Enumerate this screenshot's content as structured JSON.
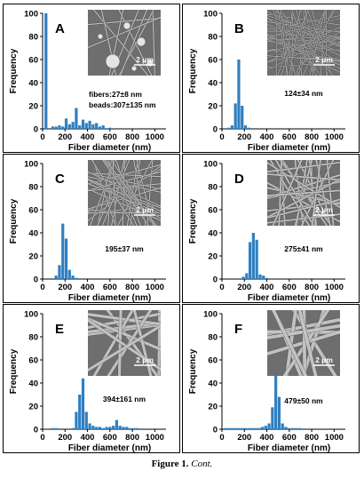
{
  "caption": {
    "label": "Figure 1.",
    "text": "Cont."
  },
  "inset_colors": {
    "bg": "#6e6e6e",
    "fiber_light": "#d6d6d6",
    "fiber_dark": "#3a3a3a",
    "text": "#ffffff"
  },
  "bar_color": "#2f7fc1",
  "chart_data": [
    {
      "type": "bar",
      "panel": "A",
      "xlabel": "Fiber diameter (nm)",
      "ylabel": "Frequency",
      "xlim": [
        0,
        1100
      ],
      "ylim": [
        0,
        100
      ],
      "xticks": [
        0,
        200,
        400,
        600,
        800,
        1000
      ],
      "yticks": [
        0,
        20,
        40,
        60,
        80,
        100
      ],
      "x": [
        30,
        90,
        120,
        150,
        180,
        210,
        240,
        270,
        300,
        330,
        360,
        390,
        420,
        450,
        480,
        510,
        540,
        600
      ],
      "values": [
        100,
        2,
        2,
        3,
        2,
        9,
        4,
        6,
        18,
        3,
        8,
        5,
        7,
        4,
        5,
        2,
        3,
        1
      ],
      "annotations": [
        "fibers:27±8 nm",
        "beads:307±135 nm"
      ],
      "scale_bar": "2 μm"
    },
    {
      "type": "bar",
      "panel": "B",
      "xlabel": "Fiber diameter (nm)",
      "ylabel": "Frequency",
      "xlim": [
        0,
        1100
      ],
      "ylim": [
        0,
        100
      ],
      "xticks": [
        0,
        200,
        400,
        600,
        800,
        1000
      ],
      "yticks": [
        0,
        20,
        40,
        60,
        80,
        100
      ],
      "x": [
        60,
        90,
        120,
        150,
        180,
        210,
        240
      ],
      "values": [
        1,
        3,
        22,
        60,
        20,
        3,
        1
      ],
      "annotations": [
        "124±34 nm"
      ],
      "scale_bar": "2 μm"
    },
    {
      "type": "bar",
      "panel": "C",
      "xlabel": "Fiber diameter (nm)",
      "ylabel": "Frequency",
      "xlim": [
        0,
        1100
      ],
      "ylim": [
        0,
        100
      ],
      "xticks": [
        0,
        200,
        400,
        600,
        800,
        1000
      ],
      "yticks": [
        0,
        20,
        40,
        60,
        80,
        100
      ],
      "x": [
        120,
        150,
        180,
        210,
        240,
        270,
        300
      ],
      "values": [
        3,
        12,
        48,
        35,
        8,
        3,
        1
      ],
      "annotations": [
        "195±37 nm"
      ],
      "scale_bar": "2 μm"
    },
    {
      "type": "bar",
      "panel": "D",
      "xlabel": "Fiber diameter (nm)",
      "ylabel": "Frequency",
      "xlim": [
        0,
        1100
      ],
      "ylim": [
        0,
        100
      ],
      "xticks": [
        0,
        200,
        400,
        600,
        800,
        1000
      ],
      "yticks": [
        0,
        20,
        40,
        60,
        80,
        100
      ],
      "x": [
        190,
        220,
        250,
        280,
        310,
        340,
        370,
        400
      ],
      "values": [
        2,
        5,
        32,
        40,
        34,
        4,
        3,
        1
      ],
      "annotations": [
        "275±41 nm"
      ],
      "scale_bar": "2 μm"
    },
    {
      "type": "bar",
      "panel": "E",
      "xlabel": "Fiber diameter (nm)",
      "ylabel": "Frequency",
      "xlim": [
        0,
        1100
      ],
      "ylim": [
        0,
        100
      ],
      "xticks": [
        0,
        200,
        400,
        600,
        800,
        1000
      ],
      "yticks": [
        0,
        20,
        40,
        60,
        80,
        100
      ],
      "x": [
        90,
        120,
        270,
        300,
        330,
        360,
        390,
        420,
        450,
        480,
        510,
        540,
        570,
        600,
        630,
        660,
        690,
        720,
        750,
        780,
        810,
        840
      ],
      "values": [
        1,
        1,
        1,
        15,
        30,
        44,
        15,
        5,
        3,
        2,
        2,
        1,
        2,
        2,
        3,
        8,
        3,
        2,
        2,
        1,
        1,
        1
      ],
      "annotations": [
        "394±161 nm"
      ],
      "scale_bar": "2 μm"
    },
    {
      "type": "bar",
      "panel": "F",
      "xlabel": "Fiber diameter (nm)",
      "ylabel": "Frequency",
      "xlim": [
        0,
        1100
      ],
      "ylim": [
        0,
        100
      ],
      "xticks": [
        0,
        200,
        400,
        600,
        800,
        1000
      ],
      "yticks": [
        0,
        20,
        40,
        60,
        80,
        100
      ],
      "x": [
        30,
        60,
        90,
        120,
        150,
        180,
        210,
        240,
        270,
        300,
        330,
        360,
        390,
        420,
        450,
        480,
        510,
        540,
        570,
        600,
        630,
        660,
        690
      ],
      "values": [
        1,
        1,
        1,
        1,
        1,
        1,
        1,
        1,
        1,
        1,
        1,
        2,
        3,
        5,
        19,
        48,
        28,
        5,
        2,
        1,
        1,
        1,
        1
      ],
      "annotations": [
        "479±50 nm"
      ],
      "scale_bar": "2 μm"
    }
  ]
}
